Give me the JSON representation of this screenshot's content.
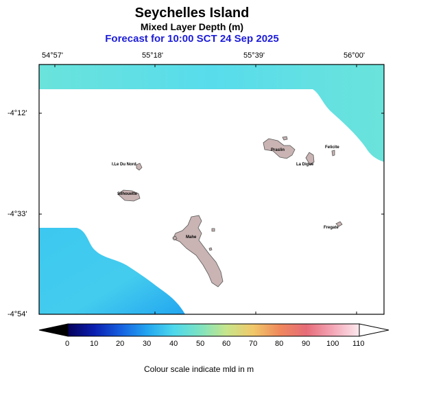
{
  "header": {
    "title": "Seychelles Island",
    "subtitle": "Mixed Layer Depth (m)",
    "forecast": "Forecast for  10:00 SCT 24 Sep 2025"
  },
  "axes": {
    "longitude_labels": [
      "54°57'",
      "55°18'",
      "55°39'",
      "56°00'"
    ],
    "latitude_labels": [
      "-4°12'",
      "-4°33'",
      "-4°54'"
    ]
  },
  "islands": {
    "ile_du_nord": "I.Le Du Nord",
    "silhouette": "Silhouette",
    "praslin": "Praslin",
    "felicite": "Felicite",
    "la_digue": "La Digue",
    "fregate": "Fregate",
    "mahe": "Mahe"
  },
  "colorbar": {
    "tick_labels": [
      "0",
      "10",
      "20",
      "30",
      "40",
      "50",
      "60",
      "70",
      "80",
      "90",
      "100",
      "110"
    ],
    "colors": [
      "#05005a",
      "#0a1fb0",
      "#1660e0",
      "#22a6f0",
      "#4dd8ec",
      "#7ee3c0",
      "#c8e58a",
      "#f1c869",
      "#f0885c",
      "#e66b78",
      "#f3a6b6",
      "#fde9ef"
    ],
    "caption": "Colour scale indicate mld in m"
  },
  "field_colors": {
    "north": "#6ae3db",
    "north_center": "#58dcec",
    "east": "#6ae3db",
    "southwest": "#3cc8f0",
    "southwest_deep": "#22a6f0",
    "land": "#c9b3b3",
    "coast": "#555555"
  }
}
